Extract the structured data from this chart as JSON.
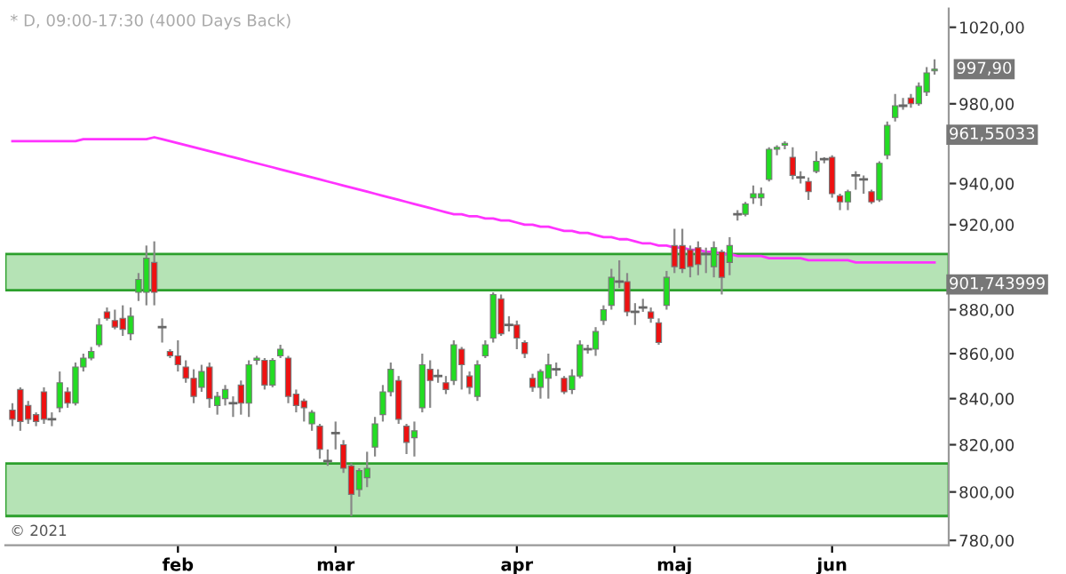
{
  "chart_data": {
    "type": "candlestick",
    "title": "* D, 09:00-17:30 (4000 Days Back)",
    "categories": [
      null,
      null,
      null,
      null,
      null,
      null,
      null,
      null,
      null,
      null,
      null,
      null,
      null,
      null,
      null,
      null,
      null,
      null,
      null,
      null,
      null,
      "feb",
      null,
      null,
      null,
      null,
      null,
      null,
      null,
      null,
      null,
      null,
      null,
      null,
      null,
      null,
      null,
      null,
      null,
      null,
      null,
      "mar",
      null,
      null,
      null,
      null,
      null,
      null,
      null,
      null,
      null,
      null,
      null,
      null,
      null,
      null,
      null,
      null,
      null,
      null,
      null,
      null,
      null,
      null,
      "apr",
      null,
      null,
      null,
      null,
      null,
      null,
      null,
      null,
      null,
      null,
      null,
      null,
      null,
      null,
      null,
      null,
      null,
      null,
      null,
      "maj",
      null,
      null,
      null,
      null,
      null,
      null,
      null,
      null,
      null,
      null,
      null,
      null,
      null,
      null,
      null,
      null,
      null,
      null,
      null,
      "jun",
      null,
      null,
      null,
      null,
      null,
      null,
      null,
      null,
      null,
      null,
      null,
      null,
      null
    ],
    "ohlc": [
      [
        835,
        838,
        828,
        831
      ],
      [
        844,
        845,
        826,
        830
      ],
      [
        837,
        839,
        829,
        831
      ],
      [
        833,
        834,
        828,
        830
      ],
      [
        843,
        845,
        829,
        831
      ],
      [
        831,
        834,
        828,
        831
      ],
      [
        836,
        852,
        834,
        847
      ],
      [
        843,
        845,
        836,
        838
      ],
      [
        838,
        856,
        837,
        854
      ],
      [
        854,
        860,
        852,
        858
      ],
      [
        858,
        863,
        857,
        861
      ],
      [
        864,
        876,
        863,
        873
      ],
      [
        879,
        881,
        875,
        876
      ],
      [
        875,
        880,
        871,
        872
      ],
      [
        876,
        882,
        868,
        871
      ],
      [
        869,
        881,
        866,
        877
      ],
      [
        888,
        897,
        884,
        894
      ],
      [
        888,
        910,
        882,
        904
      ],
      [
        902,
        912,
        882,
        888
      ],
      [
        872,
        876,
        865,
        872
      ],
      [
        861,
        862,
        858,
        859
      ],
      [
        859,
        866,
        852,
        855
      ],
      [
        854,
        857,
        847,
        849
      ],
      [
        849,
        853,
        838,
        841
      ],
      [
        845,
        855,
        843,
        852
      ],
      [
        854,
        856,
        836,
        840
      ],
      [
        837,
        843,
        833,
        841
      ],
      [
        840,
        846,
        837,
        844
      ],
      [
        838,
        841,
        832,
        838
      ],
      [
        846,
        848,
        833,
        838
      ],
      [
        838,
        857,
        832,
        855
      ],
      [
        857,
        859,
        855,
        858
      ],
      [
        857,
        858,
        844,
        846
      ],
      [
        846,
        858,
        845,
        857
      ],
      [
        859,
        864,
        858,
        862
      ],
      [
        858,
        859,
        838,
        841
      ],
      [
        842,
        844,
        834,
        837
      ],
      [
        839,
        840,
        830,
        836
      ],
      [
        829,
        835,
        826,
        834
      ],
      [
        828,
        829,
        814,
        818
      ],
      [
        813,
        818,
        811,
        813
      ],
      [
        825,
        830,
        818,
        825
      ],
      [
        820,
        822,
        808,
        810
      ],
      [
        811,
        812,
        790,
        799
      ],
      [
        801,
        810,
        798,
        809
      ],
      [
        806,
        817,
        802,
        810
      ],
      [
        819,
        832,
        815,
        829
      ],
      [
        833,
        846,
        830,
        843
      ],
      [
        843,
        856,
        841,
        853
      ],
      [
        848,
        850,
        829,
        831
      ],
      [
        828,
        829,
        816,
        821
      ],
      [
        823,
        830,
        815,
        826
      ],
      [
        836,
        860,
        834,
        855
      ],
      [
        853,
        857,
        836,
        848
      ],
      [
        850,
        853,
        847,
        850
      ],
      [
        847,
        850,
        842,
        844
      ],
      [
        848,
        866,
        846,
        864
      ],
      [
        862,
        863,
        844,
        855
      ],
      [
        850,
        852,
        842,
        845
      ],
      [
        841,
        857,
        839,
        855
      ],
      [
        859,
        866,
        858,
        864
      ],
      [
        867,
        888,
        865,
        887
      ],
      [
        885,
        887,
        868,
        869
      ],
      [
        873,
        877,
        870,
        873
      ],
      [
        873,
        875,
        862,
        867
      ],
      [
        865,
        866,
        858,
        860
      ],
      [
        849,
        851,
        843,
        845
      ],
      [
        845,
        853,
        840,
        852
      ],
      [
        849,
        860,
        840,
        855
      ],
      [
        853,
        856,
        850,
        853
      ],
      [
        849,
        850,
        842,
        843
      ],
      [
        844,
        853,
        842,
        850
      ],
      [
        850,
        866,
        849,
        864
      ],
      [
        862,
        864,
        860,
        862
      ],
      [
        862,
        872,
        859,
        870
      ],
      [
        875,
        882,
        873,
        880
      ],
      [
        882,
        899,
        880,
        895
      ],
      [
        893,
        903,
        890,
        893
      ],
      [
        893,
        897,
        877,
        879
      ],
      [
        879,
        883,
        873,
        879
      ],
      [
        881,
        885,
        879,
        881
      ],
      [
        879,
        881,
        874,
        876
      ],
      [
        874,
        876,
        864,
        865
      ],
      [
        882,
        898,
        880,
        895
      ],
      [
        910,
        918,
        897,
        900
      ],
      [
        910,
        918,
        897,
        899
      ],
      [
        908,
        910,
        895,
        900
      ],
      [
        909,
        912,
        896,
        901
      ],
      [
        906,
        909,
        897,
        906
      ],
      [
        900,
        912,
        895,
        909
      ],
      [
        907,
        908,
        887,
        895
      ],
      [
        902,
        914,
        896,
        910
      ],
      [
        925,
        927,
        922,
        925
      ],
      [
        925,
        931,
        924,
        930
      ],
      [
        933,
        939,
        930,
        935
      ],
      [
        933,
        938,
        929,
        935
      ],
      [
        942,
        958,
        941,
        957
      ],
      [
        957,
        959,
        954,
        958
      ],
      [
        959,
        961,
        957,
        960
      ],
      [
        953,
        958,
        942,
        944
      ],
      [
        943,
        946,
        940,
        943
      ],
      [
        941,
        943,
        932,
        936
      ],
      [
        946,
        956,
        945,
        951
      ],
      [
        952,
        953,
        950,
        952
      ],
      [
        953,
        954,
        933,
        935
      ],
      [
        934,
        935,
        927,
        931
      ],
      [
        931,
        937,
        927,
        936
      ],
      [
        944,
        946,
        937,
        944
      ],
      [
        942,
        944,
        935,
        942
      ],
      [
        936,
        937,
        930,
        931
      ],
      [
        932,
        951,
        931,
        950
      ],
      [
        954,
        971,
        952,
        969
      ],
      [
        973,
        985,
        971,
        979
      ],
      [
        979,
        983,
        977,
        979
      ],
      [
        983,
        985,
        978,
        980
      ],
      [
        980,
        991,
        979,
        989
      ],
      [
        986,
        999,
        984,
        996
      ],
      [
        997,
        1003,
        995,
        997.9
      ]
    ],
    "colors": [
      "#ee1111",
      "#ee1111",
      "#ee1111",
      "#ee1111",
      "#ee1111",
      "#666666",
      "#22dd22",
      "#ee1111",
      "#22dd22",
      "#22dd22",
      "#22dd22",
      "#22dd22",
      "#ee1111",
      "#ee1111",
      "#ee1111",
      "#22dd22",
      "#22dd22",
      "#22dd22",
      "#ee1111",
      "#666666",
      "#ee1111",
      "#ee1111",
      "#ee1111",
      "#ee1111",
      "#22dd22",
      "#ee1111",
      "#22dd22",
      "#22dd22",
      "#666666",
      "#ee1111",
      "#22dd22",
      "#22dd22",
      "#ee1111",
      "#22dd22",
      "#22dd22",
      "#ee1111",
      "#ee1111",
      "#ee1111",
      "#22dd22",
      "#ee1111",
      "#666666",
      "#666666",
      "#ee1111",
      "#ee1111",
      "#22dd22",
      "#22dd22",
      "#22dd22",
      "#22dd22",
      "#22dd22",
      "#ee1111",
      "#ee1111",
      "#22dd22",
      "#22dd22",
      "#ee1111",
      "#666666",
      "#ee1111",
      "#22dd22",
      "#ee1111",
      "#ee1111",
      "#22dd22",
      "#22dd22",
      "#22dd22",
      "#ee1111",
      "#666666",
      "#ee1111",
      "#ee1111",
      "#ee1111",
      "#22dd22",
      "#22dd22",
      "#666666",
      "#ee1111",
      "#22dd22",
      "#22dd22",
      "#666666",
      "#22dd22",
      "#22dd22",
      "#22dd22",
      "#666666",
      "#ee1111",
      "#666666",
      "#666666",
      "#ee1111",
      "#ee1111",
      "#22dd22",
      "#ee1111",
      "#ee1111",
      "#ee1111",
      "#ee1111",
      "#666666",
      "#22dd22",
      "#ee1111",
      "#22dd22",
      "#666666",
      "#22dd22",
      "#22dd22",
      "#22dd22",
      "#22dd22",
      "#22dd22",
      "#22dd22",
      "#ee1111",
      "#666666",
      "#ee1111",
      "#22dd22",
      "#666666",
      "#ee1111",
      "#ee1111",
      "#22dd22",
      "#666666",
      "#666666",
      "#ee1111",
      "#22dd22",
      "#22dd22",
      "#22dd22",
      "#666666",
      "#ee1111",
      "#22dd22",
      "#22dd22",
      "#22dd22"
    ],
    "series": [
      {
        "type": "line",
        "color": "#ff33ff",
        "values": [
          961,
          961,
          961,
          961,
          961,
          961,
          961,
          961,
          961,
          962,
          962,
          962,
          962,
          962,
          962,
          962,
          962,
          962,
          963,
          962,
          961,
          960,
          959,
          958,
          957,
          956,
          955,
          954,
          953,
          952,
          951,
          950,
          949,
          948,
          947,
          946,
          945,
          944,
          943,
          942,
          941,
          940,
          939,
          938,
          937,
          936,
          935,
          934,
          933,
          932,
          931,
          930,
          929,
          928,
          927,
          926,
          925,
          925,
          924,
          924,
          923,
          923,
          922,
          922,
          921,
          920,
          920,
          919,
          919,
          918,
          917,
          917,
          916,
          916,
          915,
          914,
          914,
          913,
          913,
          912,
          911,
          911,
          910,
          910,
          909,
          909,
          908,
          908,
          907,
          907,
          906,
          906,
          905,
          905,
          905,
          905,
          904,
          904,
          904,
          904,
          904,
          903,
          903,
          903,
          903,
          903,
          903,
          902,
          902,
          902,
          902,
          902,
          902,
          902,
          902,
          902,
          902,
          902
        ]
      }
    ],
    "log": true,
    "ylim": [
      778,
      1030
    ],
    "yticks": [
      {
        "value": 780,
        "label": "780,00"
      },
      {
        "value": 800,
        "label": "800,00"
      },
      {
        "value": 820,
        "label": "820,00"
      },
      {
        "value": 840,
        "label": "840,00"
      },
      {
        "value": 860,
        "label": "860,00"
      },
      {
        "value": 880,
        "label": "880,00"
      },
      {
        "value": 920,
        "label": "920,00"
      },
      {
        "value": 940,
        "label": "940,00"
      },
      {
        "value": 980,
        "label": "980,00"
      },
      {
        "value": 1020,
        "label": "1020,00"
      }
    ],
    "bands": [
      {
        "axis": "y",
        "from": 889,
        "to": 906,
        "color": "#b5e3b5"
      },
      {
        "axis": "y",
        "from": 790,
        "to": 812,
        "color": "#b5e3b5"
      }
    ],
    "annotations": [
      {
        "text": "997,90",
        "y": 997.9
      },
      "961,55033",
      "901,743999",
      "© 2021"
    ]
  }
}
